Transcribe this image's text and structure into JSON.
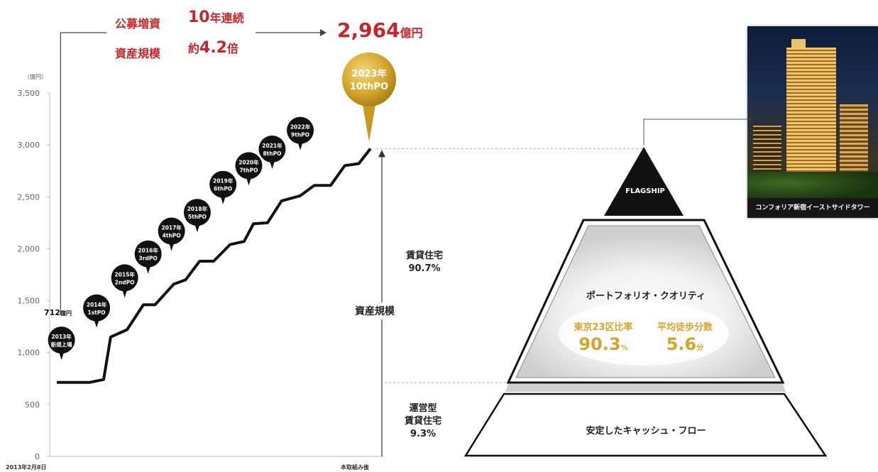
{
  "header": {
    "label1": "公募増資",
    "value1": "10",
    "unit1": "年連続",
    "label2": "資産規模",
    "prefix2": "約",
    "value2": "4.2",
    "unit2": "倍",
    "total_value": "2,964",
    "total_unit": "億円"
  },
  "chart_data": {
    "type": "line",
    "yunit": "（億円）",
    "ylim": [
      0,
      3500
    ],
    "yticks": [
      "0",
      "500",
      "1,000",
      "1,500",
      "2,000",
      "2,500",
      "3,000",
      "3,500"
    ],
    "x_start_label": "2013年2月8日",
    "x_end_label": "本取組み後",
    "series_points": [
      [
        0,
        712
      ],
      [
        0.7,
        712
      ],
      [
        1.0,
        740
      ],
      [
        1.15,
        1150
      ],
      [
        1.5,
        1220
      ],
      [
        1.85,
        1460
      ],
      [
        2.1,
        1460
      ],
      [
        2.5,
        1660
      ],
      [
        2.75,
        1700
      ],
      [
        3.05,
        1880
      ],
      [
        3.35,
        1880
      ],
      [
        3.7,
        2040
      ],
      [
        4.0,
        2070
      ],
      [
        4.2,
        2240
      ],
      [
        4.5,
        2250
      ],
      [
        4.8,
        2460
      ],
      [
        5.2,
        2510
      ],
      [
        5.5,
        2610
      ],
      [
        5.85,
        2610
      ],
      [
        6.15,
        2800
      ],
      [
        6.45,
        2820
      ],
      [
        6.7,
        2964
      ]
    ],
    "start_annotation_value": "712",
    "start_annotation_unit": "億円",
    "balloons": [
      {
        "line1": "2013年",
        "line2": "新規上場",
        "x": 0.1,
        "y": 1120
      },
      {
        "line1": "2014年",
        "line2": "1stPO",
        "x": 0.85,
        "y": 1430
      },
      {
        "line1": "2015年",
        "line2": "2ndPO",
        "x": 1.45,
        "y": 1720
      },
      {
        "line1": "2016年",
        "line2": "3rdPO",
        "x": 1.95,
        "y": 1950
      },
      {
        "line1": "2017年",
        "line2": "4thPO",
        "x": 2.45,
        "y": 2170
      },
      {
        "line1": "2018年",
        "line2": "5thPO",
        "x": 3.0,
        "y": 2350
      },
      {
        "line1": "2019年",
        "line2": "6thPO",
        "x": 3.55,
        "y": 2620
      },
      {
        "line1": "2020年",
        "line2": "7thPO",
        "x": 4.1,
        "y": 2800
      },
      {
        "line1": "2021年",
        "line2": "8thPO",
        "x": 4.6,
        "y": 2960
      },
      {
        "line1": "2022年",
        "line2": "9thPO",
        "x": 5.2,
        "y": 3140
      }
    ],
    "gold_balloon": {
      "line1": "2023年",
      "line2": "10thPO"
    },
    "asset_scale_label": "資産規模"
  },
  "pyramid": {
    "top_label": "FLAGSHIP",
    "middle_title": "ポートフォリオ・クオリティ",
    "stat1_label": "東京23区比率",
    "stat1_value": "90.3",
    "stat1_unit": "%",
    "stat2_label": "平均徒歩分数",
    "stat2_value": "5.6",
    "stat2_unit": "分",
    "bottom_label": "安定したキャッシュ・フロー",
    "mid_side_line1": "賃貸住宅",
    "mid_side_line2": "90.7%",
    "bottom_side_line1": "運営型",
    "bottom_side_line2": "賃貸住宅",
    "bottom_side_line3": "9.3%"
  },
  "photo": {
    "caption": "コンフォリア新宿イーストサイドタワー"
  },
  "colors": {
    "accent_red": "#c8242b",
    "gold": "#d4a52c",
    "dark": "#111111"
  }
}
